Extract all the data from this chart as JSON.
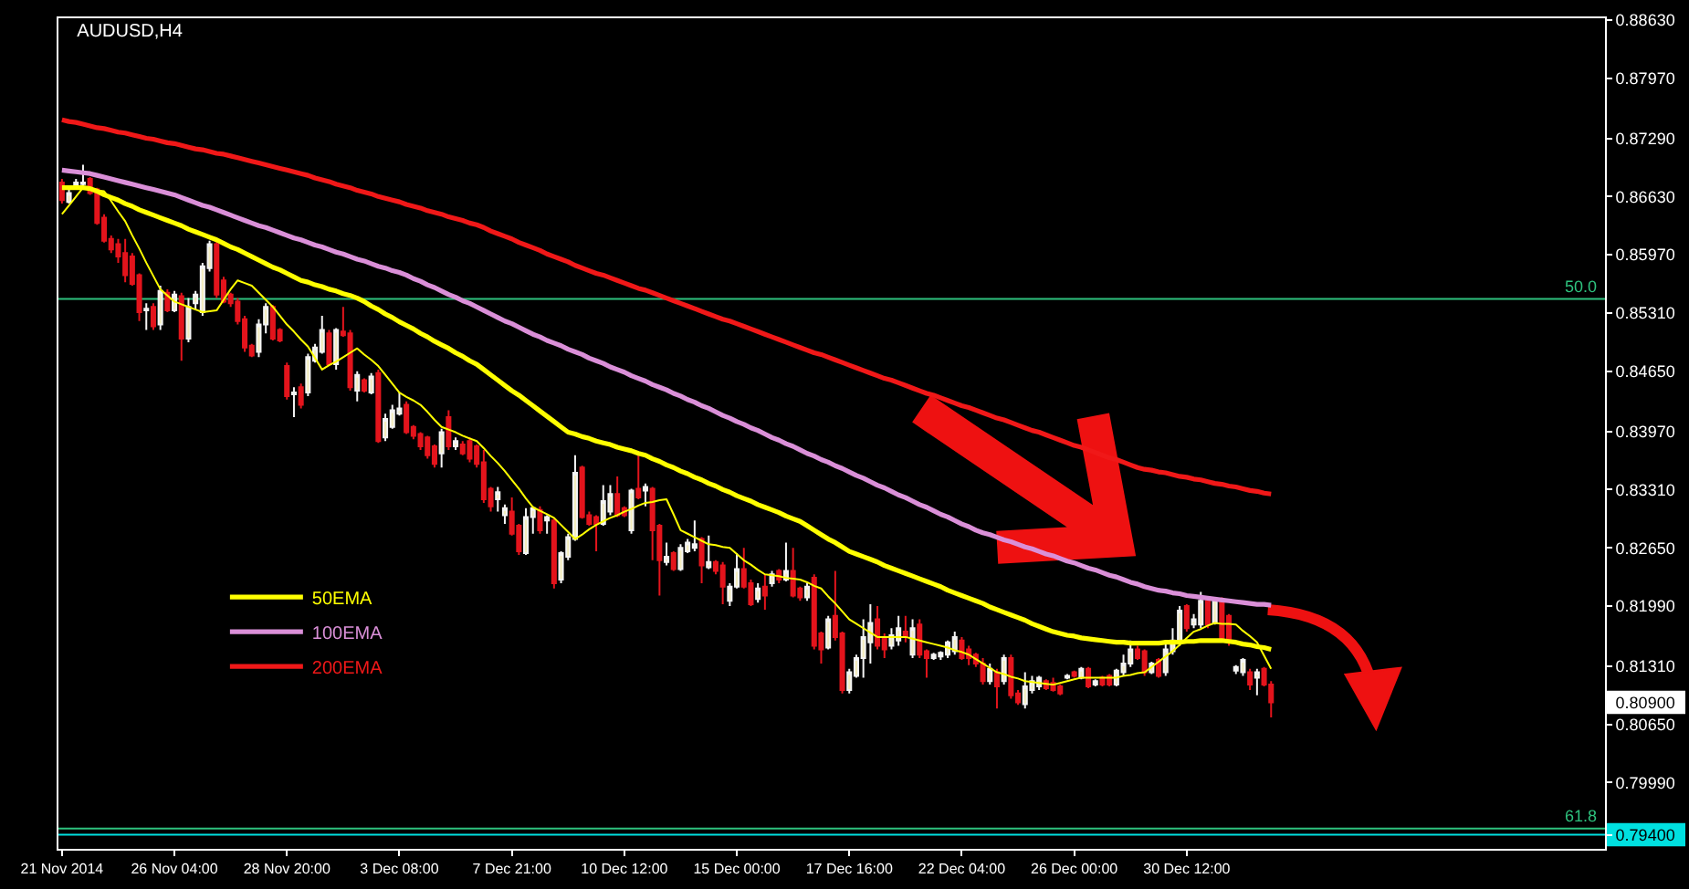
{
  "chart_data": {
    "type": "candlestick",
    "title": "AUDUSD,H4",
    "categories": [
      "21 Nov 2014",
      null,
      null,
      null,
      null,
      null,
      null,
      null,
      null,
      null,
      null,
      null,
      null,
      null,
      null,
      null,
      "26 Nov 04:00",
      null,
      null,
      null,
      null,
      null,
      null,
      null,
      null,
      null,
      null,
      null,
      null,
      null,
      null,
      null,
      "28 Nov 20:00",
      null,
      null,
      null,
      null,
      null,
      null,
      null,
      null,
      null,
      null,
      null,
      null,
      null,
      null,
      null,
      "3 Dec 08:00",
      null,
      null,
      null,
      null,
      null,
      null,
      null,
      null,
      null,
      null,
      null,
      null,
      null,
      null,
      null,
      "7 Dec 21:00",
      null,
      null,
      null,
      null,
      null,
      null,
      null,
      null,
      null,
      null,
      null,
      null,
      null,
      null,
      null,
      "10 Dec 12:00",
      null,
      null,
      null,
      null,
      null,
      null,
      null,
      null,
      null,
      null,
      null,
      null,
      null,
      null,
      null,
      "15 Dec 00:00",
      null,
      null,
      null,
      null,
      null,
      null,
      null,
      null,
      null,
      null,
      null,
      null,
      null,
      null,
      null,
      "17 Dec 16:00",
      null,
      null,
      null,
      null,
      null,
      null,
      null,
      null,
      null,
      null,
      null,
      null,
      null,
      null,
      null,
      "22 Dec 04:00",
      null,
      null,
      null,
      null,
      null,
      null,
      null,
      null,
      null,
      null,
      null,
      null,
      null,
      null,
      null,
      "26 Dec 00:00",
      null,
      null,
      null,
      null,
      null,
      null,
      null,
      null,
      null,
      null,
      null,
      null,
      null,
      null,
      null,
      "30 Dec 12:00",
      null,
      null,
      null,
      null,
      null,
      null,
      null,
      null,
      null,
      null,
      null,
      null
    ],
    "ohlc": [
      [
        0.8679,
        0.8683,
        0.8655,
        0.8659
      ],
      [
        0.8657,
        0.8671,
        0.8655,
        0.8667
      ],
      [
        0.8675,
        0.8683,
        0.8671,
        0.8679
      ],
      [
        0.8677,
        0.8699,
        0.8675,
        0.8679
      ],
      [
        0.8683,
        0.8685,
        0.8665,
        0.8667
      ],
      [
        0.8671,
        0.8673,
        0.8631,
        0.8633
      ],
      [
        0.8639,
        0.8643,
        0.8611,
        0.8613
      ],
      [
        0.8615,
        0.8619,
        0.8599,
        0.8603
      ],
      [
        0.8609,
        0.8615,
        0.8588,
        0.8595
      ],
      [
        0.8599,
        0.8615,
        0.8566,
        0.8574
      ],
      [
        0.8595,
        0.8599,
        0.8562,
        0.8564
      ],
      [
        0.8574,
        0.8576,
        0.8522,
        0.8532
      ],
      [
        0.8534,
        0.8542,
        0.8512,
        0.8536
      ],
      [
        0.8538,
        0.8542,
        0.8512,
        0.8516
      ],
      [
        0.8518,
        0.8562,
        0.8512,
        0.8556
      ],
      [
        0.8554,
        0.8558,
        0.8532,
        0.8534
      ],
      [
        0.8534,
        0.8556,
        0.8532,
        0.8552
      ],
      [
        0.855,
        0.8554,
        0.8477,
        0.8502
      ],
      [
        0.8502,
        0.8548,
        0.8498,
        0.8538
      ],
      [
        0.8542,
        0.8556,
        0.8534,
        0.8552
      ],
      [
        0.8532,
        0.8588,
        0.8528,
        0.8584
      ],
      [
        0.8582,
        0.8613,
        0.8578,
        0.8609
      ],
      [
        0.8609,
        0.8613,
        0.8548,
        0.8552
      ],
      [
        0.8568,
        0.8572,
        0.8542,
        0.8544
      ],
      [
        0.8552,
        0.8554,
        0.8538,
        0.8542
      ],
      [
        0.8544,
        0.8548,
        0.8518,
        0.8522
      ],
      [
        0.8524,
        0.8528,
        0.8487,
        0.8492
      ],
      [
        0.8494,
        0.8496,
        0.8481,
        0.8483
      ],
      [
        0.8487,
        0.8524,
        0.8481,
        0.8518
      ],
      [
        0.8518,
        0.8542,
        0.8508,
        0.8538
      ],
      [
        0.8538,
        0.854,
        0.85,
        0.8502
      ],
      [
        0.8512,
        0.8514,
        0.8498,
        0.85
      ],
      [
        0.8471,
        0.8475,
        0.8433,
        0.8437
      ],
      [
        0.8439,
        0.8447,
        0.8413,
        0.8441
      ],
      [
        0.8447,
        0.8451,
        0.8423,
        0.8427
      ],
      [
        0.8441,
        0.8485,
        0.8437,
        0.8481
      ],
      [
        0.8477,
        0.8496,
        0.8475,
        0.8492
      ],
      [
        0.8487,
        0.8528,
        0.8485,
        0.8512
      ],
      [
        0.8508,
        0.8512,
        0.8471,
        0.8473
      ],
      [
        0.8473,
        0.8514,
        0.8467,
        0.8512
      ],
      [
        0.851,
        0.8538,
        0.8504,
        0.8506
      ],
      [
        0.8508,
        0.8512,
        0.8443,
        0.8447
      ],
      [
        0.8443,
        0.8465,
        0.8431,
        0.8461
      ],
      [
        0.8455,
        0.8457,
        0.8441,
        0.8443
      ],
      [
        0.8441,
        0.8463,
        0.8439,
        0.8459
      ],
      [
        0.8463,
        0.8467,
        0.8384,
        0.8386
      ],
      [
        0.839,
        0.8417,
        0.8386,
        0.8411
      ],
      [
        0.8402,
        0.8427,
        0.84,
        0.8421
      ],
      [
        0.8417,
        0.8441,
        0.8415,
        0.8423
      ],
      [
        0.8427,
        0.8431,
        0.8394,
        0.8396
      ],
      [
        0.8402,
        0.8404,
        0.8388,
        0.8392
      ],
      [
        0.8394,
        0.8396,
        0.8376,
        0.838
      ],
      [
        0.839,
        0.8392,
        0.8366,
        0.837
      ],
      [
        0.838,
        0.8382,
        0.8356,
        0.836
      ],
      [
        0.8372,
        0.84,
        0.8356,
        0.8396
      ],
      [
        0.8413,
        0.8421,
        0.8376,
        0.838
      ],
      [
        0.838,
        0.839,
        0.8376,
        0.8386
      ],
      [
        0.8382,
        0.8386,
        0.837,
        0.8372
      ],
      [
        0.8386,
        0.839,
        0.8362,
        0.8366
      ],
      [
        0.838,
        0.8382,
        0.8356,
        0.836
      ],
      [
        0.8362,
        0.8376,
        0.8316,
        0.832
      ],
      [
        0.8332,
        0.8334,
        0.8306,
        0.8312
      ],
      [
        0.832,
        0.8334,
        0.8306,
        0.8328
      ],
      [
        0.8302,
        0.8314,
        0.8292,
        0.831
      ],
      [
        0.8306,
        0.8322,
        0.8279,
        0.8281
      ],
      [
        0.829,
        0.8292,
        0.8257,
        0.8261
      ],
      [
        0.8259,
        0.831,
        0.8257,
        0.83
      ],
      [
        0.83,
        0.8312,
        0.8281,
        0.831
      ],
      [
        0.8308,
        0.8312,
        0.8281,
        0.8285
      ],
      [
        0.8296,
        0.8302,
        0.8281,
        0.83
      ],
      [
        0.8296,
        0.8298,
        0.8219,
        0.8225
      ],
      [
        0.8229,
        0.8261,
        0.8225,
        0.8259
      ],
      [
        0.8255,
        0.8281,
        0.8251,
        0.8277
      ],
      [
        0.8275,
        0.837,
        0.8273,
        0.835
      ],
      [
        0.8356,
        0.8358,
        0.8298,
        0.83
      ],
      [
        0.8302,
        0.8306,
        0.829,
        0.8292
      ],
      [
        0.83,
        0.8302,
        0.8261,
        0.8292
      ],
      [
        0.8292,
        0.8336,
        0.829,
        0.8318
      ],
      [
        0.8306,
        0.8336,
        0.8302,
        0.8326
      ],
      [
        0.8326,
        0.8346,
        0.83,
        0.8302
      ],
      [
        0.831,
        0.8312,
        0.83,
        0.8302
      ],
      [
        0.8285,
        0.8332,
        0.8281,
        0.833
      ],
      [
        0.8332,
        0.8372,
        0.832,
        0.8322
      ],
      [
        0.833,
        0.8338,
        0.8312,
        0.8334
      ],
      [
        0.8332,
        0.8334,
        0.8251,
        0.8285
      ],
      [
        0.829,
        0.8292,
        0.8211,
        0.8251
      ],
      [
        0.8249,
        0.8271,
        0.8245,
        0.8255
      ],
      [
        0.8259,
        0.8261,
        0.8239,
        0.8241
      ],
      [
        0.8241,
        0.8269,
        0.8239,
        0.8265
      ],
      [
        0.8261,
        0.8275,
        0.8259,
        0.8271
      ],
      [
        0.8265,
        0.8296,
        0.8261,
        0.8269
      ],
      [
        0.8275,
        0.8277,
        0.8225,
        0.8245
      ],
      [
        0.8243,
        0.8279,
        0.8241,
        0.8249
      ],
      [
        0.8249,
        0.8251,
        0.8235,
        0.8239
      ],
      [
        0.8245,
        0.8249,
        0.8201,
        0.8221
      ],
      [
        0.8205,
        0.8225,
        0.8199,
        0.8221
      ],
      [
        0.8221,
        0.8259,
        0.8219,
        0.8241
      ],
      [
        0.8241,
        0.8265,
        0.8219,
        0.8221
      ],
      [
        0.8225,
        0.8229,
        0.8199,
        0.8201
      ],
      [
        0.8207,
        0.8225,
        0.8203,
        0.8219
      ],
      [
        0.8221,
        0.8235,
        0.8195,
        0.8211
      ],
      [
        0.8225,
        0.8239,
        0.8221,
        0.8235
      ],
      [
        0.8239,
        0.8241,
        0.8225,
        0.8229
      ],
      [
        0.8229,
        0.8271,
        0.8227,
        0.8239
      ],
      [
        0.8239,
        0.8265,
        0.8209,
        0.8211
      ],
      [
        0.8219,
        0.8221,
        0.8205,
        0.8209
      ],
      [
        0.8209,
        0.8225,
        0.8205,
        0.8221
      ],
      [
        0.8231,
        0.8235,
        0.815,
        0.8154
      ],
      [
        0.8168,
        0.817,
        0.8134,
        0.815
      ],
      [
        0.8152,
        0.8188,
        0.815,
        0.8184
      ],
      [
        0.8188,
        0.8239,
        0.816,
        0.8164
      ],
      [
        0.8168,
        0.817,
        0.81,
        0.8104
      ],
      [
        0.8104,
        0.8128,
        0.81,
        0.8124
      ],
      [
        0.812,
        0.8144,
        0.8118,
        0.814
      ],
      [
        0.814,
        0.8184,
        0.8118,
        0.8164
      ],
      [
        0.8158,
        0.8201,
        0.8134,
        0.818
      ],
      [
        0.8184,
        0.8199,
        0.815,
        0.8154
      ],
      [
        0.8164,
        0.8168,
        0.814,
        0.815
      ],
      [
        0.8154,
        0.8174,
        0.815,
        0.8166
      ],
      [
        0.816,
        0.8188,
        0.8154,
        0.8174
      ],
      [
        0.817,
        0.8188,
        0.8158,
        0.8164
      ],
      [
        0.8144,
        0.8184,
        0.814,
        0.8174
      ],
      [
        0.8178,
        0.8184,
        0.814,
        0.8144
      ],
      [
        0.8148,
        0.815,
        0.8118,
        0.814
      ],
      [
        0.814,
        0.8146,
        0.8138,
        0.8144
      ],
      [
        0.8142,
        0.8148,
        0.8138,
        0.8146
      ],
      [
        0.8144,
        0.816,
        0.814,
        0.8158
      ],
      [
        0.8148,
        0.817,
        0.8144,
        0.8164
      ],
      [
        0.816,
        0.8164,
        0.8138,
        0.814
      ],
      [
        0.815,
        0.8154,
        0.8132,
        0.814
      ],
      [
        0.8144,
        0.8146,
        0.813,
        0.8134
      ],
      [
        0.8134,
        0.814,
        0.811,
        0.8114
      ],
      [
        0.8114,
        0.8134,
        0.811,
        0.8128
      ],
      [
        0.8124,
        0.8128,
        0.8083,
        0.8108
      ],
      [
        0.8114,
        0.8144,
        0.811,
        0.814
      ],
      [
        0.814,
        0.8144,
        0.8094,
        0.8098
      ],
      [
        0.81,
        0.8104,
        0.8087,
        0.809
      ],
      [
        0.8088,
        0.8124,
        0.8083,
        0.8108
      ],
      [
        0.8104,
        0.812,
        0.81,
        0.8114
      ],
      [
        0.8108,
        0.812,
        0.8104,
        0.8118
      ],
      [
        0.8114,
        0.8116,
        0.8104,
        0.8106
      ],
      [
        0.8112,
        0.8118,
        0.8102,
        0.8104
      ],
      [
        0.8108,
        0.811,
        0.8098,
        0.81
      ],
      [
        0.8118,
        0.8122,
        0.8116,
        0.812
      ],
      [
        0.8124,
        0.8126,
        0.8118,
        0.812
      ],
      [
        0.8118,
        0.813,
        0.8116,
        0.8128
      ],
      [
        0.8128,
        0.813,
        0.8106,
        0.8108
      ],
      [
        0.811,
        0.8116,
        0.8108,
        0.8114
      ],
      [
        0.8118,
        0.812,
        0.8108,
        0.811
      ],
      [
        0.812,
        0.8122,
        0.8108,
        0.811
      ],
      [
        0.811,
        0.8128,
        0.8108,
        0.8126
      ],
      [
        0.8124,
        0.8144,
        0.812,
        0.8134
      ],
      [
        0.8134,
        0.816,
        0.813,
        0.815
      ],
      [
        0.815,
        0.8154,
        0.8138,
        0.814
      ],
      [
        0.8148,
        0.815,
        0.812,
        0.8124
      ],
      [
        0.8124,
        0.8136,
        0.8122,
        0.8134
      ],
      [
        0.8138,
        0.814,
        0.8118,
        0.812
      ],
      [
        0.8124,
        0.8158,
        0.812,
        0.815
      ],
      [
        0.8148,
        0.8174,
        0.8144,
        0.816
      ],
      [
        0.8158,
        0.8199,
        0.8154,
        0.8194
      ],
      [
        0.8199,
        0.8201,
        0.817,
        0.8174
      ],
      [
        0.8178,
        0.819,
        0.8174,
        0.8184
      ],
      [
        0.8178,
        0.8215,
        0.8174,
        0.8205
      ],
      [
        0.8205,
        0.8209,
        0.8174,
        0.8178
      ],
      [
        0.818,
        0.8209,
        0.8178,
        0.8207
      ],
      [
        0.8205,
        0.8209,
        0.8158,
        0.816
      ],
      [
        0.8188,
        0.819,
        0.8154,
        0.8158
      ],
      [
        0.8126,
        0.8132,
        0.8122,
        0.813
      ],
      [
        0.8124,
        0.814,
        0.812,
        0.8138
      ],
      [
        0.8124,
        0.8128,
        0.8104,
        0.811
      ],
      [
        0.8118,
        0.8128,
        0.8098,
        0.8124
      ],
      [
        0.8128,
        0.813,
        0.8108,
        0.811
      ],
      [
        0.811,
        0.8114,
        0.8073,
        0.809
      ]
    ],
    "series": [
      {
        "name": "50EMA",
        "type": "line",
        "color": "#ffff00",
        "values": [
          0.8673,
          0.8673,
          0.8673,
          0.8673,
          0.8672,
          0.8669,
          0.8665,
          0.8662,
          0.8659,
          0.8655,
          0.8652,
          0.8648,
          0.8645,
          0.8642,
          0.8639,
          0.8636,
          0.8633,
          0.863,
          0.8626,
          0.8623,
          0.862,
          0.8617,
          0.8614,
          0.861,
          0.8606,
          0.8603,
          0.8599,
          0.8595,
          0.8591,
          0.8587,
          0.8583,
          0.858,
          0.8576,
          0.8572,
          0.8568,
          0.8566,
          0.8563,
          0.8561,
          0.8558,
          0.8556,
          0.8553,
          0.8551,
          0.8548,
          0.8544,
          0.8539,
          0.8535,
          0.853,
          0.8526,
          0.8521,
          0.8517,
          0.8513,
          0.8508,
          0.8504,
          0.8499,
          0.8495,
          0.8491,
          0.8486,
          0.8482,
          0.8477,
          0.8473,
          0.8467,
          0.8461,
          0.8455,
          0.8449,
          0.8443,
          0.8438,
          0.8432,
          0.8426,
          0.842,
          0.8414,
          0.8408,
          0.8402,
          0.8396,
          0.8394,
          0.8391,
          0.8389,
          0.8386,
          0.8384,
          0.8382,
          0.8379,
          0.8377,
          0.8375,
          0.8372,
          0.837,
          0.8366,
          0.8363,
          0.8359,
          0.8356,
          0.8352,
          0.8349,
          0.8345,
          0.8342,
          0.8338,
          0.8335,
          0.8331,
          0.8328,
          0.8324,
          0.8321,
          0.8318,
          0.8314,
          0.8311,
          0.8308,
          0.8305,
          0.8301,
          0.8298,
          0.8295,
          0.829,
          0.8285,
          0.828,
          0.8275,
          0.8271,
          0.8266,
          0.8261,
          0.8258,
          0.8255,
          0.8252,
          0.8249,
          0.8245,
          0.8242,
          0.8239,
          0.8236,
          0.8233,
          0.823,
          0.8227,
          0.8224,
          0.8221,
          0.8217,
          0.8214,
          0.8211,
          0.8208,
          0.8205,
          0.8202,
          0.8198,
          0.8195,
          0.8192,
          0.8189,
          0.8186,
          0.8183,
          0.8179,
          0.8176,
          0.8173,
          0.817,
          0.8168,
          0.8166,
          0.8165,
          0.8163,
          0.8162,
          0.8161,
          0.816,
          0.8159,
          0.8158,
          0.8158,
          0.8157,
          0.8157,
          0.8157,
          0.8157,
          0.8157,
          0.8158,
          0.8158,
          0.8158,
          0.8159,
          0.8159,
          0.816,
          0.816,
          0.816,
          0.816,
          0.8159,
          0.8158,
          0.8156,
          0.8155,
          0.8153,
          0.8152,
          0.815
        ]
      },
      {
        "name": "100EMA",
        "type": "line",
        "color": "#da8fd8",
        "values": [
          0.8693,
          0.8692,
          0.8691,
          0.869,
          0.8689,
          0.8687,
          0.8685,
          0.8683,
          0.8681,
          0.8679,
          0.8677,
          0.8675,
          0.8673,
          0.8671,
          0.8669,
          0.8667,
          0.8665,
          0.8662,
          0.8659,
          0.8656,
          0.8653,
          0.8651,
          0.8648,
          0.8645,
          0.8642,
          0.8639,
          0.8636,
          0.8633,
          0.863,
          0.8628,
          0.8625,
          0.8622,
          0.8619,
          0.8616,
          0.8614,
          0.8611,
          0.8608,
          0.8606,
          0.8603,
          0.86,
          0.8598,
          0.8595,
          0.8592,
          0.859,
          0.8587,
          0.8584,
          0.8582,
          0.8579,
          0.8577,
          0.8574,
          0.857,
          0.8567,
          0.8563,
          0.856,
          0.8556,
          0.8552,
          0.8549,
          0.8545,
          0.8542,
          0.8538,
          0.8534,
          0.853,
          0.8526,
          0.8522,
          0.8519,
          0.8515,
          0.8511,
          0.8507,
          0.8504,
          0.85,
          0.8497,
          0.8494,
          0.849,
          0.8487,
          0.8484,
          0.848,
          0.8477,
          0.8474,
          0.847,
          0.8467,
          0.8464,
          0.846,
          0.8457,
          0.8454,
          0.845,
          0.8447,
          0.8444,
          0.844,
          0.8437,
          0.8433,
          0.843,
          0.8426,
          0.8423,
          0.8419,
          0.8415,
          0.8412,
          0.8408,
          0.8405,
          0.8401,
          0.8398,
          0.8394,
          0.839,
          0.8387,
          0.8383,
          0.838,
          0.8376,
          0.8372,
          0.8369,
          0.8365,
          0.8362,
          0.8358,
          0.8355,
          0.8351,
          0.8347,
          0.8344,
          0.834,
          0.8336,
          0.8333,
          0.8329,
          0.8325,
          0.8322,
          0.8318,
          0.8314,
          0.8311,
          0.8307,
          0.8303,
          0.83,
          0.8296,
          0.8292,
          0.8289,
          0.8285,
          0.8282,
          0.828,
          0.8277,
          0.8274,
          0.8272,
          0.8269,
          0.8266,
          0.8264,
          0.8261,
          0.8258,
          0.8256,
          0.8253,
          0.825,
          0.8248,
          0.8245,
          0.8242,
          0.824,
          0.8237,
          0.8234,
          0.8232,
          0.8229,
          0.8226,
          0.8224,
          0.8221,
          0.8219,
          0.8217,
          0.8216,
          0.8214,
          0.8213,
          0.8211,
          0.821,
          0.8209,
          0.8208,
          0.8207,
          0.8206,
          0.8205,
          0.8204,
          0.8203,
          0.8202,
          0.8201,
          0.8201,
          0.82
        ]
      },
      {
        "name": "200EMA",
        "type": "line",
        "color": "#f01818",
        "values": [
          0.875,
          0.8748,
          0.8747,
          0.8745,
          0.8743,
          0.8741,
          0.874,
          0.8738,
          0.8736,
          0.8735,
          0.8733,
          0.8731,
          0.8729,
          0.8728,
          0.8726,
          0.8724,
          0.8723,
          0.8721,
          0.8719,
          0.8717,
          0.8716,
          0.8714,
          0.8712,
          0.8711,
          0.8709,
          0.8707,
          0.8705,
          0.8703,
          0.8701,
          0.8699,
          0.8697,
          0.8695,
          0.8693,
          0.8691,
          0.8689,
          0.8687,
          0.8684,
          0.8682,
          0.868,
          0.8677,
          0.8675,
          0.8673,
          0.867,
          0.8668,
          0.8666,
          0.8663,
          0.8661,
          0.8659,
          0.8657,
          0.8654,
          0.8652,
          0.865,
          0.8647,
          0.8645,
          0.8643,
          0.864,
          0.8638,
          0.8636,
          0.8633,
          0.8631,
          0.8628,
          0.8624,
          0.8621,
          0.8618,
          0.8615,
          0.8611,
          0.8608,
          0.8605,
          0.8602,
          0.8598,
          0.8595,
          0.8592,
          0.8589,
          0.8585,
          0.8582,
          0.8579,
          0.8576,
          0.8574,
          0.8571,
          0.8568,
          0.8565,
          0.8562,
          0.8559,
          0.8557,
          0.8554,
          0.8551,
          0.8548,
          0.8545,
          0.8542,
          0.8539,
          0.8536,
          0.8533,
          0.853,
          0.8527,
          0.8524,
          0.8522,
          0.8519,
          0.8516,
          0.8513,
          0.851,
          0.8507,
          0.8504,
          0.8501,
          0.8498,
          0.8495,
          0.8492,
          0.8489,
          0.8486,
          0.8484,
          0.8481,
          0.8478,
          0.8475,
          0.8472,
          0.8469,
          0.8466,
          0.8463,
          0.846,
          0.8457,
          0.8455,
          0.8452,
          0.8449,
          0.8446,
          0.8443,
          0.844,
          0.8438,
          0.8435,
          0.8432,
          0.8429,
          0.8426,
          0.8424,
          0.8421,
          0.8418,
          0.8415,
          0.8412,
          0.841,
          0.8407,
          0.8404,
          0.8401,
          0.8398,
          0.8396,
          0.8393,
          0.839,
          0.8387,
          0.8384,
          0.8381,
          0.8379,
          0.8376,
          0.8373,
          0.837,
          0.8367,
          0.8365,
          0.8362,
          0.8359,
          0.8356,
          0.8354,
          0.8353,
          0.8351,
          0.835,
          0.8348,
          0.8346,
          0.8345,
          0.8343,
          0.8342,
          0.834,
          0.8338,
          0.8337,
          0.8335,
          0.8334,
          0.8332,
          0.833,
          0.8329,
          0.8327,
          0.8326
        ]
      },
      {
        "type": "line",
        "color": "#ffff00",
        "values": [
          0.8643,
          0.8653,
          0.8663,
          0.8673,
          0.8672,
          0.867,
          0.8669,
          0.8658,
          0.8646,
          0.8635,
          0.8619,
          0.8604,
          0.8588,
          0.8573,
          0.8558,
          0.8551,
          0.8544,
          0.8541,
          0.8538,
          0.8535,
          0.8532,
          0.8533,
          0.8534,
          0.8546,
          0.8558,
          0.8568,
          0.8565,
          0.8562,
          0.8554,
          0.8546,
          0.8538,
          0.8528,
          0.8518,
          0.851,
          0.8501,
          0.8493,
          0.848,
          0.8467,
          0.8472,
          0.8476,
          0.8481,
          0.8486,
          0.8491,
          0.8484,
          0.8478,
          0.8471,
          0.8461,
          0.8451,
          0.8441,
          0.8436,
          0.8432,
          0.8427,
          0.8419,
          0.841,
          0.8402,
          0.8399,
          0.8396,
          0.8392,
          0.8389,
          0.8386,
          0.8378,
          0.8369,
          0.8361,
          0.8352,
          0.8342,
          0.8332,
          0.8321,
          0.8311,
          0.8307,
          0.8303,
          0.8299,
          0.8291,
          0.8283,
          0.8275,
          0.828,
          0.8286,
          0.8291,
          0.8295,
          0.8299,
          0.8302,
          0.8306,
          0.8309,
          0.8313,
          0.8316,
          0.8317,
          0.8319,
          0.832,
          0.8303,
          0.8285,
          0.8281,
          0.8277,
          0.8273,
          0.8269,
          0.8268,
          0.8266,
          0.8265,
          0.8258,
          0.8251,
          0.8246,
          0.824,
          0.8235,
          0.8234,
          0.8233,
          0.8231,
          0.823,
          0.8229,
          0.8226,
          0.8222,
          0.8219,
          0.821,
          0.8202,
          0.8193,
          0.8184,
          0.8179,
          0.8174,
          0.8169,
          0.8164,
          0.8164,
          0.8164,
          0.8164,
          0.8164,
          0.8162,
          0.816,
          0.8158,
          0.8156,
          0.8154,
          0.8152,
          0.8149,
          0.8147,
          0.8144,
          0.8139,
          0.8134,
          0.8129,
          0.8124,
          0.8122,
          0.8119,
          0.8117,
          0.8114,
          0.8113,
          0.8112,
          0.8111,
          0.811,
          0.8112,
          0.8114,
          0.8116,
          0.8118,
          0.8118,
          0.8118,
          0.8118,
          0.8118,
          0.8118,
          0.812,
          0.8121,
          0.8123,
          0.8124,
          0.813,
          0.8136,
          0.8142,
          0.8148,
          0.8155,
          0.8163,
          0.817,
          0.8173,
          0.8177,
          0.818,
          0.8179,
          0.8179,
          0.8178,
          0.8171,
          0.8165,
          0.8158,
          0.8143,
          0.8128
        ]
      }
    ],
    "ylim": [
      0.7924,
      0.8865
    ],
    "yticks": [
      {
        "value": 0.8863,
        "label": "0.88630"
      },
      {
        "value": 0.8797,
        "label": "0.87970"
      },
      {
        "value": 0.8729,
        "label": "0.87290"
      },
      {
        "value": 0.8663,
        "label": "0.86630"
      },
      {
        "value": 0.8597,
        "label": "0.85970"
      },
      {
        "value": 0.8531,
        "label": "0.85310"
      },
      {
        "value": 0.8465,
        "label": "0.84650"
      },
      {
        "value": 0.8397,
        "label": "0.83970"
      },
      {
        "value": 0.8331,
        "label": "0.83310"
      },
      {
        "value": 0.8265,
        "label": "0.82650"
      },
      {
        "value": 0.8199,
        "label": "0.81990"
      },
      {
        "value": 0.8131,
        "label": "0.81310"
      },
      {
        "value": 0.809,
        "label": "0.80900"
      },
      {
        "value": 0.8065,
        "label": "0.80650"
      },
      {
        "value": 0.7999,
        "label": "0.79990"
      },
      {
        "value": 0.794,
        "label": "0.79400"
      }
    ],
    "ref_lines": [
      {
        "axis": "y",
        "value": 0.8547,
        "color": "#2ec27e"
      },
      {
        "axis": "y",
        "value": 0.7947,
        "color": "#2ec27e"
      },
      {
        "axis": "y",
        "value": 0.794,
        "color": "#00e0e0"
      }
    ],
    "annotations": [
      {
        "text": "50.0",
        "y": 0.8547
      },
      {
        "text": "61.8",
        "y": 0.7947
      }
    ],
    "legend": "left"
  }
}
